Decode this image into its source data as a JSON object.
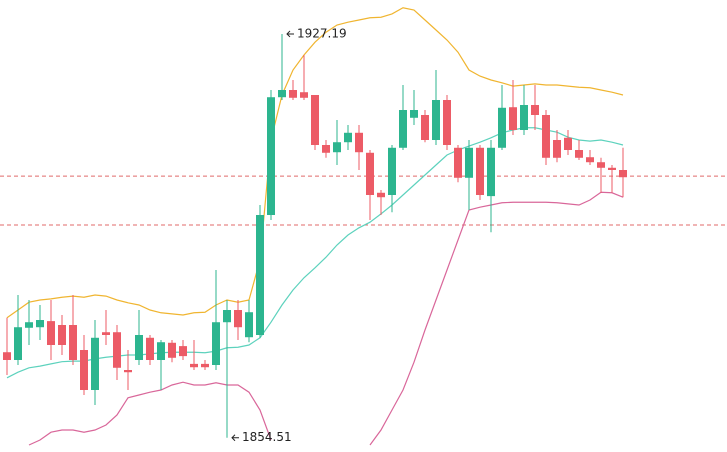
{
  "chart_data": {
    "type": "candlestick",
    "ylim": [
      1852.66,
      1933.3
    ],
    "up_color": "#2cb58f",
    "down_color": "#ec5b66",
    "open": [
      1869.9,
      1868.5,
      1874.3,
      1874.4,
      1875.5,
      1874.8,
      1874.8,
      1870.3,
      1863.1,
      1873.5,
      1873.5,
      1866.7,
      1868.5,
      1872.5,
      1868.5,
      1871.6,
      1871.0,
      1867.8,
      1867.8,
      1867.6,
      1875.3,
      1877.5,
      1872.6,
      1873.0,
      1894.6,
      1915.8,
      1917.1,
      1916.7,
      1916.2,
      1907.2,
      1905.9,
      1907.7,
      1909.4,
      1905.8,
      1898.6,
      1898.2,
      1906.7,
      1912.1,
      1912.6,
      1908.1,
      1915.3,
      1906.7,
      1901.3,
      1906.7,
      1898.0,
      1906.7,
      1914.0,
      1909.9,
      1914.4,
      1912.6,
      1908.1,
      1908.5,
      1906.3,
      1905.0,
      1904.1,
      1903.1,
      1902.7
    ],
    "high": [
      1876.1,
      1880.2,
      1879.3,
      1878.4,
      1879.3,
      1876.6,
      1880.2,
      1873.0,
      1875.7,
      1877.5,
      1874.8,
      1870.3,
      1877.5,
      1873.0,
      1872.1,
      1872.1,
      1872.1,
      1872.1,
      1868.5,
      1884.7,
      1879.3,
      1879.3,
      1879.3,
      1896.4,
      1917.1,
      1927.19,
      1918.9,
      1923.4,
      1916.2,
      1908.1,
      1911.7,
      1910.8,
      1910.8,
      1906.3,
      1899.1,
      1907.2,
      1918.0,
      1917.1,
      1913.5,
      1920.7,
      1916.2,
      1907.2,
      1908.1,
      1907.2,
      1908.1,
      1918.0,
      1918.9,
      1918.0,
      1918.0,
      1913.5,
      1909.9,
      1909.9,
      1908.1,
      1906.3,
      1904.9,
      1903.6,
      1906.7
    ],
    "low": [
      1865.8,
      1867.6,
      1871.2,
      1872.1,
      1868.5,
      1869.4,
      1867.6,
      1862.2,
      1860.4,
      1871.2,
      1864.9,
      1863.1,
      1867.6,
      1867.6,
      1863.1,
      1868.1,
      1868.5,
      1866.7,
      1866.7,
      1866.7,
      1854.51,
      1872.1,
      1871.7,
      1872.5,
      1893.7,
      1915.3,
      1915.3,
      1915.3,
      1906.3,
      1904.9,
      1903.6,
      1906.3,
      1902.7,
      1893.7,
      1894.6,
      1895.1,
      1906.3,
      1910.8,
      1907.7,
      1907.2,
      1906.3,
      1900.5,
      1895.5,
      1897.3,
      1891.5,
      1906.3,
      1909.0,
      1909.0,
      1909.9,
      1903.6,
      1904.1,
      1905.4,
      1904.5,
      1903.6,
      1898.6,
      1898.6,
      1897.8
    ],
    "close": [
      1868.5,
      1874.4,
      1875.3,
      1875.7,
      1871.2,
      1871.2,
      1868.5,
      1863.1,
      1872.5,
      1873.0,
      1867.1,
      1866.3,
      1873.0,
      1868.5,
      1871.7,
      1868.9,
      1869.2,
      1867.2,
      1867.2,
      1875.3,
      1877.5,
      1874.4,
      1877.1,
      1894.6,
      1915.8,
      1917.1,
      1915.7,
      1915.7,
      1907.2,
      1905.8,
      1907.7,
      1909.4,
      1905.9,
      1898.2,
      1897.8,
      1906.7,
      1913.5,
      1913.5,
      1908.1,
      1915.3,
      1907.2,
      1901.3,
      1906.7,
      1898.2,
      1906.7,
      1913.9,
      1909.9,
      1914.4,
      1912.6,
      1904.9,
      1904.9,
      1906.3,
      1904.9,
      1904.1,
      1903.1,
      1902.7,
      1901.4
    ],
    "bands": [
      {
        "color": "#f0b530",
        "values": [
          1876.1,
          1877.5,
          1878.9,
          1879.3,
          1879.5,
          1879.8,
          1880.0,
          1879.8,
          1880.2,
          1880.0,
          1879.3,
          1878.8,
          1878.4,
          1877.5,
          1877.0,
          1876.8,
          1876.6,
          1877.0,
          1877.1,
          1878.4,
          1879.3,
          1878.9,
          1879.3,
          1886.5,
          1908.1,
          1916.2,
          1920.7,
          1923.4,
          1925.7,
          1927.5,
          1928.8,
          1929.3,
          1929.7,
          1930.1,
          1930.2,
          1930.8,
          1931.9,
          1931.5,
          1929.7,
          1927.9,
          1926.1,
          1923.9,
          1920.7,
          1919.6,
          1918.9,
          1918.4,
          1917.8,
          1918.0,
          1918.2,
          1918.0,
          1918.0,
          1917.8,
          1917.6,
          1917.5,
          1917.1,
          1916.7,
          1916.2
        ]
      },
      {
        "color": "#5dd2bd",
        "values": [
          1865.3,
          1866.3,
          1867.1,
          1867.4,
          1867.8,
          1868.2,
          1868.3,
          1868.3,
          1868.7,
          1869.0,
          1869.2,
          1869.4,
          1869.4,
          1869.6,
          1869.8,
          1869.9,
          1869.9,
          1869.9,
          1869.8,
          1870.1,
          1870.7,
          1870.8,
          1871.2,
          1872.5,
          1875.3,
          1878.4,
          1881.1,
          1883.3,
          1885.1,
          1887.0,
          1889.2,
          1891.0,
          1892.3,
          1893.3,
          1894.8,
          1896.4,
          1898.2,
          1900.0,
          1901.8,
          1903.6,
          1905.4,
          1906.3,
          1907.0,
          1907.7,
          1908.5,
          1909.4,
          1909.9,
          1910.3,
          1910.3,
          1909.9,
          1909.5,
          1908.6,
          1908.1,
          1907.9,
          1908.1,
          1907.7,
          1907.2
        ]
      },
      {
        "color": "#d9679a",
        "values": [
          null,
          null,
          1853.2,
          1854.1,
          1855.5,
          1855.9,
          1855.9,
          1855.5,
          1855.9,
          1856.8,
          1858.6,
          1861.7,
          1862.2,
          1862.7,
          1863.1,
          1864.0,
          1864.5,
          1864.0,
          1864.0,
          1864.4,
          1864.0,
          1864.0,
          1862.7,
          1859.5,
          1854.1,
          null,
          null,
          null,
          null,
          null,
          null,
          null,
          null,
          1853.2,
          1855.9,
          1859.5,
          1863.1,
          1868.1,
          1873.9,
          1879.3,
          1884.7,
          1890.1,
          1895.5,
          1896.0,
          1896.4,
          1896.8,
          1896.9,
          1896.9,
          1896.9,
          1896.9,
          1896.8,
          1896.6,
          1896.4,
          1897.3,
          1898.7,
          1898.6,
          1897.8
        ]
      }
    ],
    "price_lines": [
      1901.6,
      1892.8
    ],
    "price_line_color": "#e06a6a"
  }
}
